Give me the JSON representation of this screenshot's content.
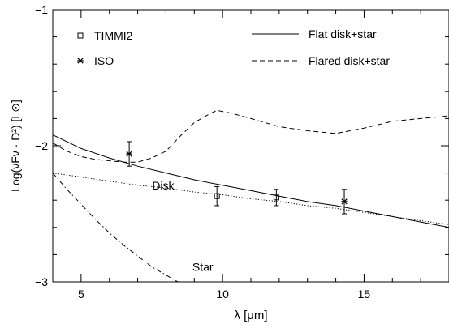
{
  "chart_data": {
    "type": "line",
    "xlabel": "λ  [μm]",
    "ylabel": "Log(νFν · D²)  [L⊙]",
    "xlim": [
      4,
      18
    ],
    "ylim": [
      -3,
      -1
    ],
    "x_ticks": [
      5,
      10,
      15
    ],
    "y_ticks": [
      -3,
      -2,
      -1
    ],
    "x_tick_labels": [
      "5",
      "10",
      "15"
    ],
    "y_tick_labels": [
      "−3",
      "−2",
      "−1"
    ],
    "grid": false,
    "legend_position": "top",
    "series": [
      {
        "name": "Flat disk+star",
        "style": "solid",
        "color": "#000000",
        "x": [
          4.0,
          5.0,
          6.0,
          7.0,
          8.0,
          9.0,
          10.0,
          11.0,
          12.0,
          13.0,
          14.0,
          15.0,
          16.0,
          17.0,
          18.0
        ],
        "y": [
          -1.92,
          -2.02,
          -2.09,
          -2.15,
          -2.2,
          -2.25,
          -2.29,
          -2.33,
          -2.37,
          -2.41,
          -2.44,
          -2.48,
          -2.52,
          -2.56,
          -2.6
        ]
      },
      {
        "name": "Flared disk+star",
        "style": "dashed",
        "color": "#000000",
        "x": [
          4.0,
          4.5,
          5.0,
          5.5,
          6.0,
          6.5,
          7.0,
          7.5,
          8.0,
          8.5,
          9.0,
          9.5,
          9.8,
          10.3,
          11.0,
          12.0,
          13.0,
          14.0,
          15.0,
          16.0,
          17.0,
          18.0
        ],
        "y": [
          -1.98,
          -2.04,
          -2.08,
          -2.1,
          -2.11,
          -2.12,
          -2.12,
          -2.09,
          -2.04,
          -1.93,
          -1.83,
          -1.77,
          -1.74,
          -1.76,
          -1.8,
          -1.86,
          -1.89,
          -1.91,
          -1.87,
          -1.82,
          -1.8,
          -1.78
        ]
      },
      {
        "name": "Disk",
        "style": "dotted",
        "color": "#000000",
        "x": [
          4.0,
          5.0,
          6.0,
          7.0,
          8.0,
          9.0,
          10.0,
          11.0,
          12.0,
          13.0,
          14.0,
          15.0,
          16.0,
          17.0,
          18.0
        ],
        "y": [
          -2.2,
          -2.23,
          -2.26,
          -2.29,
          -2.31,
          -2.34,
          -2.36,
          -2.39,
          -2.41,
          -2.44,
          -2.46,
          -2.49,
          -2.52,
          -2.55,
          -2.58
        ]
      },
      {
        "name": "Star",
        "style": "dashdot",
        "color": "#000000",
        "x": [
          4.0,
          4.5,
          5.0,
          5.5,
          6.0,
          6.5,
          7.0,
          7.5,
          8.0,
          8.5,
          9.0
        ],
        "y": [
          -2.2,
          -2.32,
          -2.43,
          -2.54,
          -2.64,
          -2.73,
          -2.81,
          -2.89,
          -2.95,
          -3.01,
          -3.06
        ]
      }
    ],
    "data_series": [
      {
        "name": "TIMMI2",
        "marker": "square",
        "points": [
          {
            "x": 9.8,
            "y": -2.37,
            "yerr": 0.07
          },
          {
            "x": 11.9,
            "y": -2.38,
            "yerr": 0.06
          }
        ]
      },
      {
        "name": "ISO",
        "marker": "asterisk",
        "points": [
          {
            "x": 6.7,
            "y": -2.06,
            "yerr": 0.09
          },
          {
            "x": 14.3,
            "y": -2.41,
            "yerr": 0.09
          }
        ]
      }
    ],
    "annotations": [
      {
        "text": "Disk",
        "x": 7.9,
        "y": -2.32
      },
      {
        "text": "Star",
        "x": 9.3,
        "y": -2.92
      }
    ]
  }
}
